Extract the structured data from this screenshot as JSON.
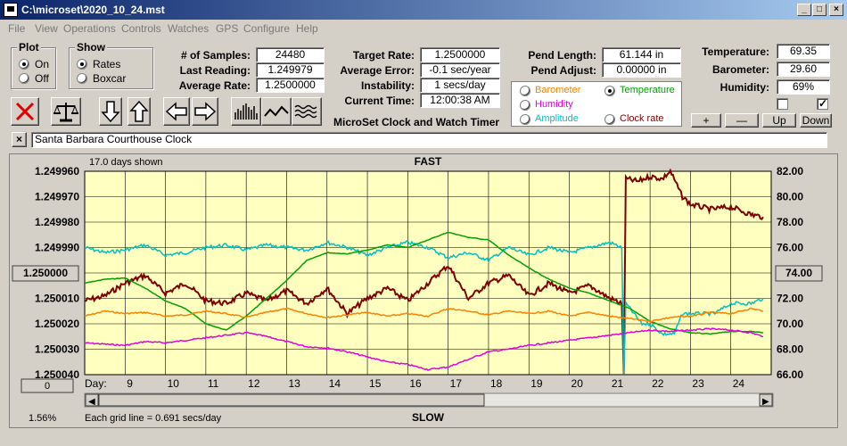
{
  "window": {
    "title": "C:\\microset\\2020_10_24.mst"
  },
  "menu": [
    "File",
    "View",
    "Operations",
    "Controls",
    "Watches",
    "GPS",
    "Configure",
    "Help"
  ],
  "plot_group": {
    "title": "Plot",
    "options": [
      "On",
      "Off"
    ],
    "selected": "On"
  },
  "show_group": {
    "title": "Show",
    "options": [
      "Rates",
      "Boxcar"
    ],
    "selected": "Rates"
  },
  "stats": {
    "samples_label": "# of Samples:",
    "samples": "24480",
    "last_label": "Last Reading:",
    "last": "1.249979",
    "avg_rate_label": "Average Rate:",
    "avg_rate": "1.2500000",
    "target_label": "Target Rate:",
    "target": "1.2500000",
    "avg_err_label": "Average Error:",
    "avg_err": "-0.1 sec/year",
    "instab_label": "Instability:",
    "instab": "1 secs/day",
    "time_label": "Current Time:",
    "time": "12:00:38 AM",
    "pend_len_label": "Pend Length:",
    "pend_len": "61.144 in",
    "pend_adj_label": "Pend Adjust:",
    "pend_adj": "0.00000 in"
  },
  "app_caption": "MicroSet Clock and Watch Timer",
  "sensors": {
    "barometer": {
      "label": "Barometer",
      "color": "#ff8000",
      "selected": false
    },
    "temperature": {
      "label": "Temperature",
      "color": "#00a000",
      "selected": true
    },
    "humidity": {
      "label": "Humidity",
      "color": "#e000e0",
      "selected": false
    },
    "amplitude": {
      "label": "Amplitude",
      "color": "#00c0c0",
      "selected": false
    },
    "clockrate": {
      "label": "Clock rate",
      "color": "#800000",
      "selected": false
    }
  },
  "env": {
    "temp_label": "Temperature:",
    "temp": "69.35",
    "baro_label": "Barometer:",
    "baro": "29.60",
    "hum_label": "Humidity:",
    "hum": "69%",
    "check1": false,
    "check2": true
  },
  "env_buttons": [
    "+",
    "—",
    "Up",
    "Down"
  ],
  "clock_name": "Santa Barbara Courthouse Clock",
  "chart_data": {
    "type": "line",
    "days_shown": "17.0 days shown",
    "top_label": "FAST",
    "bottom_label": "SLOW",
    "left_ticks": [
      "1.249960",
      "1.249970",
      "1.249980",
      "1.249990",
      "1.250000",
      "1.250010",
      "1.250020",
      "1.250030",
      "1.250040"
    ],
    "right_ticks": [
      "82.00",
      "80.00",
      "78.00",
      "76.00",
      "74.00",
      "72.00",
      "70.00",
      "68.00",
      "66.00"
    ],
    "left_center_button": "1.250000",
    "right_center_button": "74.00",
    "offset_button": "0",
    "day_label": "Day:",
    "x_days": [
      "9",
      "10",
      "11",
      "12",
      "13",
      "14",
      "15",
      "16",
      "17",
      "18",
      "19",
      "20",
      "21",
      "22",
      "23",
      "24"
    ],
    "xlim": [
      8,
      25
    ],
    "ylim_left": [
      1.24996,
      1.25004
    ],
    "ylim_right": [
      66,
      82
    ],
    "grid_note": "Each grid line = 0.691 secs/day",
    "percent": "1.56%",
    "series": [
      {
        "key": "clockrate",
        "color": "#800000",
        "axis": "left",
        "points": [
          [
            8,
            1.250011
          ],
          [
            8.5,
            1.250009
          ],
          [
            9,
            1.250004
          ],
          [
            9.5,
            1.250001
          ],
          [
            10,
            1.250008
          ],
          [
            10.5,
            1.250004
          ],
          [
            11,
            1.250011
          ],
          [
            11.5,
            1.250012
          ],
          [
            12,
            1.250008
          ],
          [
            12.5,
            1.250011
          ],
          [
            13,
            1.250007
          ],
          [
            13.5,
            1.250012
          ],
          [
            14,
            1.250006
          ],
          [
            14.5,
            1.250016
          ],
          [
            15,
            1.25001
          ],
          [
            15.5,
            1.250006
          ],
          [
            16,
            1.250011
          ],
          [
            16.5,
            1.250004
          ],
          [
            17,
            1.249997
          ],
          [
            17.5,
            1.25001
          ],
          [
            18,
            1.250004
          ],
          [
            18.5,
            1.250001
          ],
          [
            19,
            1.250009
          ],
          [
            19.5,
            1.250004
          ],
          [
            20,
            1.250008
          ],
          [
            20.5,
            1.250005
          ],
          [
            21,
            1.25001
          ],
          [
            21.3,
            1.250012
          ],
          [
            21.35,
            1.25004
          ],
          [
            21.4,
            1.249963
          ],
          [
            21.7,
            1.249964
          ],
          [
            22,
            1.249962
          ],
          [
            22.3,
            1.249963
          ],
          [
            22.5,
            1.24996
          ],
          [
            22.8,
            1.24997
          ],
          [
            23,
            1.249973
          ],
          [
            23.5,
            1.249975
          ],
          [
            24,
            1.249974
          ],
          [
            24.5,
            1.249977
          ],
          [
            24.8,
            1.249978
          ]
        ]
      },
      {
        "key": "amplitude",
        "color": "#00c0c0",
        "axis": "left",
        "points": [
          [
            8,
            1.24999
          ],
          [
            8.5,
            1.249992
          ],
          [
            9,
            1.249991
          ],
          [
            9.5,
            1.249989
          ],
          [
            10,
            1.249993
          ],
          [
            10.5,
            1.249992
          ],
          [
            11,
            1.24999
          ],
          [
            11.5,
            1.249989
          ],
          [
            12,
            1.249991
          ],
          [
            12.5,
            1.249989
          ],
          [
            13,
            1.24999
          ],
          [
            13.5,
            1.249991
          ],
          [
            14,
            1.249988
          ],
          [
            14.5,
            1.24999
          ],
          [
            15,
            1.249993
          ],
          [
            15.5,
            1.24999
          ],
          [
            16,
            1.249988
          ],
          [
            16.5,
            1.24999
          ],
          [
            17,
            1.249994
          ],
          [
            17.5,
            1.249992
          ],
          [
            18,
            1.249995
          ],
          [
            18.5,
            1.24999
          ],
          [
            19,
            1.249993
          ],
          [
            19.5,
            1.24999
          ],
          [
            20,
            1.249992
          ],
          [
            20.5,
            1.24999
          ],
          [
            21,
            1.249988
          ],
          [
            21.3,
            1.24999
          ],
          [
            21.35,
            1.25004
          ],
          [
            21.4,
            1.250012
          ],
          [
            21.8,
            1.25002
          ],
          [
            22,
            1.25002
          ],
          [
            22.3,
            1.250024
          ],
          [
            22.6,
            1.250024
          ],
          [
            22.8,
            1.250016
          ],
          [
            23.2,
            1.250016
          ],
          [
            23.6,
            1.250016
          ],
          [
            24,
            1.250012
          ],
          [
            24.5,
            1.250012
          ],
          [
            24.8,
            1.25001
          ]
        ]
      },
      {
        "key": "temperature",
        "color": "#00a000",
        "axis": "right",
        "points": [
          [
            8,
            73.2
          ],
          [
            8.5,
            73.5
          ],
          [
            9,
            73.6
          ],
          [
            9.5,
            72.8
          ],
          [
            10,
            71.8
          ],
          [
            10.5,
            71.2
          ],
          [
            11,
            70.0
          ],
          [
            11.5,
            69.5
          ],
          [
            12,
            70.6
          ],
          [
            12.5,
            72.0
          ],
          [
            13,
            73.4
          ],
          [
            13.5,
            75.0
          ],
          [
            14,
            75.6
          ],
          [
            14.5,
            75.5
          ],
          [
            15,
            75.8
          ],
          [
            15.5,
            76.2
          ],
          [
            16,
            76.0
          ],
          [
            16.5,
            76.6
          ],
          [
            17,
            77.2
          ],
          [
            17.5,
            76.8
          ],
          [
            18,
            76.6
          ],
          [
            18.5,
            75.4
          ],
          [
            19,
            74.4
          ],
          [
            19.5,
            73.5
          ],
          [
            20,
            72.8
          ],
          [
            20.5,
            72.4
          ],
          [
            21,
            71.8
          ],
          [
            21.5,
            71.2
          ],
          [
            22,
            70.2
          ],
          [
            22.5,
            69.6
          ],
          [
            23,
            69.3
          ],
          [
            23.5,
            69.2
          ],
          [
            24,
            69.4
          ],
          [
            24.5,
            69.4
          ],
          [
            24.8,
            69.3
          ]
        ]
      },
      {
        "key": "barometer",
        "color": "#ff8000",
        "axis": "right",
        "points": [
          [
            8,
            70.6
          ],
          [
            8.5,
            71.0
          ],
          [
            9,
            70.8
          ],
          [
            9.5,
            70.9
          ],
          [
            10,
            70.6
          ],
          [
            10.5,
            70.7
          ],
          [
            11,
            71.0
          ],
          [
            11.5,
            70.8
          ],
          [
            12,
            70.5
          ],
          [
            12.5,
            70.9
          ],
          [
            13,
            71.2
          ],
          [
            13.5,
            70.8
          ],
          [
            14,
            70.5
          ],
          [
            14.5,
            70.7
          ],
          [
            15,
            70.9
          ],
          [
            15.5,
            70.6
          ],
          [
            16,
            70.8
          ],
          [
            16.5,
            70.6
          ],
          [
            17,
            71.2
          ],
          [
            17.5,
            71.0
          ],
          [
            18,
            70.7
          ],
          [
            18.5,
            71.0
          ],
          [
            19,
            70.8
          ],
          [
            19.5,
            71.0
          ],
          [
            20,
            70.6
          ],
          [
            20.5,
            70.9
          ],
          [
            21,
            70.6
          ],
          [
            21.5,
            70.4
          ],
          [
            22,
            70.2
          ],
          [
            22.5,
            70.5
          ],
          [
            23,
            70.6
          ],
          [
            23.5,
            70.9
          ],
          [
            24,
            70.8
          ],
          [
            24.5,
            71.2
          ],
          [
            24.8,
            71.0
          ]
        ]
      },
      {
        "key": "humidity",
        "color": "#e000e0",
        "axis": "right",
        "points": [
          [
            8,
            68.5
          ],
          [
            8.5,
            68.4
          ],
          [
            9,
            68.3
          ],
          [
            9.5,
            68.6
          ],
          [
            10,
            68.5
          ],
          [
            10.5,
            68.7
          ],
          [
            11,
            68.9
          ],
          [
            11.5,
            69.1
          ],
          [
            12,
            69.3
          ],
          [
            12.5,
            69.0
          ],
          [
            13,
            68.6
          ],
          [
            13.5,
            68.2
          ],
          [
            14,
            68.1
          ],
          [
            14.5,
            67.8
          ],
          [
            15,
            67.4
          ],
          [
            15.5,
            67.0
          ],
          [
            16,
            66.8
          ],
          [
            16.5,
            66.4
          ],
          [
            17,
            66.6
          ],
          [
            17.5,
            67.2
          ],
          [
            18,
            67.8
          ],
          [
            18.5,
            68.0
          ],
          [
            19,
            68.3
          ],
          [
            19.5,
            68.5
          ],
          [
            20,
            68.7
          ],
          [
            20.5,
            68.9
          ],
          [
            21,
            69.1
          ],
          [
            21.5,
            69.3
          ],
          [
            22,
            69.5
          ],
          [
            22.5,
            69.4
          ],
          [
            23,
            69.5
          ],
          [
            23.5,
            69.6
          ],
          [
            24,
            69.5
          ],
          [
            24.5,
            69.3
          ],
          [
            24.8,
            69.0
          ]
        ]
      }
    ]
  }
}
